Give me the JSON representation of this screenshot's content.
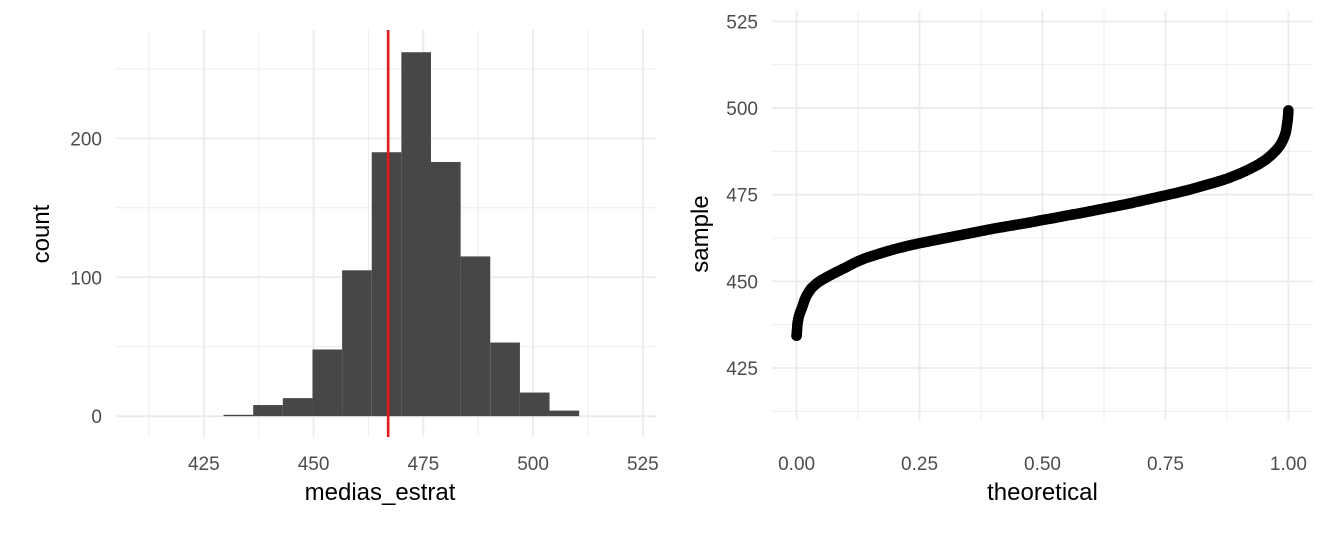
{
  "chart_data": [
    {
      "type": "bar",
      "title": "",
      "xlabel": "medias_estrat",
      "ylabel": "count",
      "xlim": [
        405,
        528
      ],
      "ylim": [
        -15,
        278
      ],
      "xticks": [
        425,
        450,
        475,
        500,
        525
      ],
      "yticks": [
        0,
        100,
        200
      ],
      "bins": [
        {
          "x0": 429.5,
          "x1": 436.25,
          "count": 1
        },
        {
          "x0": 436.25,
          "x1": 443.0,
          "count": 8
        },
        {
          "x0": 443.0,
          "x1": 449.75,
          "count": 13
        },
        {
          "x0": 449.75,
          "x1": 456.5,
          "count": 48
        },
        {
          "x0": 456.5,
          "x1": 463.25,
          "count": 105
        },
        {
          "x0": 463.25,
          "x1": 470.0,
          "count": 190
        },
        {
          "x0": 470.0,
          "x1": 476.75,
          "count": 262
        },
        {
          "x0": 476.75,
          "x1": 483.5,
          "count": 183
        },
        {
          "x0": 483.5,
          "x1": 490.25,
          "count": 115
        },
        {
          "x0": 490.25,
          "x1": 497.0,
          "count": 53
        },
        {
          "x0": 497.0,
          "x1": 503.75,
          "count": 17
        },
        {
          "x0": 503.75,
          "x1": 510.5,
          "count": 4
        }
      ],
      "vline": 467,
      "colors": {
        "bar": "#474747",
        "vline": "#e31a1c"
      },
      "grid": true
    },
    {
      "type": "scatter",
      "title": "",
      "xlabel": "theoretical",
      "ylabel": "sample",
      "xlim": [
        -0.05,
        1.05
      ],
      "ylim": [
        410,
        528
      ],
      "xticks": [
        0.0,
        0.25,
        0.5,
        0.75,
        1.0
      ],
      "yticks": [
        425,
        450,
        475,
        500,
        525
      ],
      "xtick_labels": [
        "0.00",
        "0.25",
        "0.50",
        "0.75",
        "1.00"
      ],
      "points": [
        [
          0.0,
          434.3
        ],
        [
          0.002,
          438.0
        ],
        [
          0.004,
          439.5
        ],
        [
          0.006,
          440.5
        ],
        [
          0.008,
          441.3
        ],
        [
          0.01,
          442.0
        ],
        [
          0.013,
          443.2
        ],
        [
          0.016,
          444.5
        ],
        [
          0.02,
          445.8
        ],
        [
          0.025,
          447.0
        ],
        [
          0.03,
          448.0
        ],
        [
          0.04,
          449.3
        ],
        [
          0.05,
          450.3
        ],
        [
          0.065,
          451.5
        ],
        [
          0.08,
          452.6
        ],
        [
          0.1,
          454.0
        ],
        [
          0.12,
          455.5
        ],
        [
          0.14,
          456.7
        ],
        [
          0.16,
          457.6
        ],
        [
          0.18,
          458.5
        ],
        [
          0.2,
          459.3
        ],
        [
          0.225,
          460.2
        ],
        [
          0.25,
          461.0
        ],
        [
          0.275,
          461.7
        ],
        [
          0.3,
          462.4
        ],
        [
          0.325,
          463.1
        ],
        [
          0.35,
          463.8
        ],
        [
          0.375,
          464.5
        ],
        [
          0.4,
          465.2
        ],
        [
          0.425,
          465.8
        ],
        [
          0.45,
          466.4
        ],
        [
          0.475,
          467.0
        ],
        [
          0.5,
          467.7
        ],
        [
          0.525,
          468.3
        ],
        [
          0.55,
          469.0
        ],
        [
          0.575,
          469.6
        ],
        [
          0.6,
          470.3
        ],
        [
          0.625,
          471.0
        ],
        [
          0.65,
          471.7
        ],
        [
          0.675,
          472.4
        ],
        [
          0.7,
          473.2
        ],
        [
          0.725,
          474.0
        ],
        [
          0.75,
          474.8
        ],
        [
          0.775,
          475.6
        ],
        [
          0.8,
          476.5
        ],
        [
          0.825,
          477.5
        ],
        [
          0.85,
          478.5
        ],
        [
          0.875,
          479.6
        ],
        [
          0.9,
          481.0
        ],
        [
          0.92,
          482.3
        ],
        [
          0.94,
          483.8
        ],
        [
          0.955,
          485.2
        ],
        [
          0.965,
          486.4
        ],
        [
          0.975,
          487.8
        ],
        [
          0.982,
          489.0
        ],
        [
          0.988,
          490.5
        ],
        [
          0.992,
          491.8
        ],
        [
          0.995,
          493.2
        ],
        [
          0.997,
          495.0
        ],
        [
          0.999,
          497.0
        ],
        [
          1.0,
          499.3
        ]
      ],
      "colors": {
        "point": "#000000"
      },
      "grid": true
    }
  ]
}
